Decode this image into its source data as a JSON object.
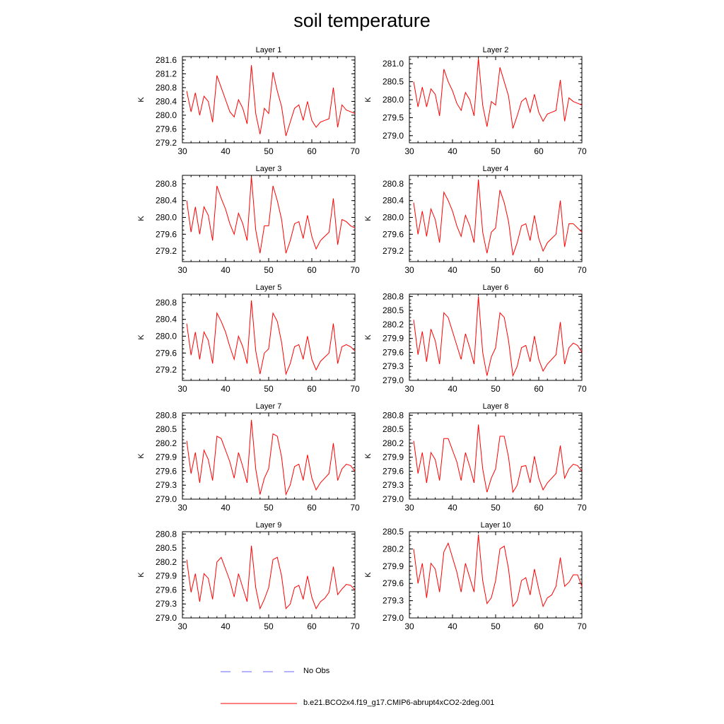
{
  "title": "soil temperature",
  "colors": {
    "model": "#ff0000",
    "obs": "#6666ff",
    "axis": "#000000"
  },
  "legend": {
    "obs_label": "No Obs",
    "model_label": "b.e21.BCO2x4.f19_g17.CMIP6-abrupt4xCO2-2deg.001"
  },
  "chart_data": [
    {
      "type": "line",
      "title": "Layer 1",
      "ylabel": "K",
      "xlim": [
        30,
        70
      ],
      "ylim": [
        279.2,
        281.7
      ],
      "yticks": [
        "279.2",
        "279.6",
        "280.0",
        "280.4",
        "280.8",
        "281.2",
        "281.6"
      ],
      "xticks": [
        "30",
        "40",
        "50",
        "60",
        "70"
      ],
      "series": [
        {
          "x": [
            31,
            32,
            33,
            34,
            35,
            36,
            37,
            38,
            39,
            40,
            41,
            42,
            43,
            44,
            45,
            46,
            47,
            48,
            49,
            50,
            51,
            52,
            53,
            54,
            55,
            56,
            57,
            58,
            59,
            60,
            61,
            62,
            63,
            64,
            65,
            66,
            67,
            68,
            69,
            70
          ],
          "values": [
            280.7,
            280.1,
            280.65,
            280.0,
            280.55,
            280.4,
            279.8,
            281.15,
            280.8,
            280.45,
            280.1,
            279.95,
            280.45,
            280.2,
            279.75,
            281.45,
            280.05,
            279.45,
            280.2,
            280.05,
            281.25,
            280.7,
            280.25,
            279.4,
            279.8,
            280.2,
            280.3,
            279.85,
            280.4,
            279.85,
            279.65,
            279.8,
            279.85,
            279.9,
            280.8,
            279.65,
            280.3,
            280.15,
            280.1,
            280.05
          ]
        }
      ]
    },
    {
      "type": "line",
      "title": "Layer 2",
      "ylabel": "K",
      "xlim": [
        30,
        70
      ],
      "ylim": [
        278.8,
        281.2
      ],
      "yticks": [
        "279.0",
        "279.5",
        "280.0",
        "280.5",
        "281.0"
      ],
      "xticks": [
        "30",
        "40",
        "50",
        "60",
        "70"
      ],
      "series": [
        {
          "x": [
            31,
            32,
            33,
            34,
            35,
            36,
            37,
            38,
            39,
            40,
            41,
            42,
            43,
            44,
            45,
            46,
            47,
            48,
            49,
            50,
            51,
            52,
            53,
            54,
            55,
            56,
            57,
            58,
            59,
            60,
            61,
            62,
            63,
            64,
            65,
            66,
            67,
            68,
            69,
            70
          ],
          "values": [
            280.5,
            279.8,
            280.35,
            279.8,
            280.3,
            280.15,
            279.55,
            280.85,
            280.5,
            280.25,
            279.9,
            279.7,
            280.2,
            280.0,
            279.55,
            281.15,
            279.85,
            279.25,
            279.95,
            279.85,
            280.9,
            280.5,
            280.1,
            279.2,
            279.55,
            279.95,
            280.05,
            279.65,
            280.15,
            279.65,
            279.4,
            279.6,
            279.65,
            279.7,
            280.55,
            279.4,
            280.05,
            279.95,
            279.9,
            279.85
          ]
        }
      ]
    },
    {
      "type": "line",
      "title": "Layer 3",
      "ylabel": "K",
      "xlim": [
        30,
        70
      ],
      "ylim": [
        278.95,
        281.0
      ],
      "yticks": [
        "279.2",
        "279.6",
        "280.0",
        "280.4",
        "280.8"
      ],
      "xticks": [
        "30",
        "40",
        "50",
        "60",
        "70"
      ],
      "series": [
        {
          "x": [
            31,
            32,
            33,
            34,
            35,
            36,
            37,
            38,
            39,
            40,
            41,
            42,
            43,
            44,
            45,
            46,
            47,
            48,
            49,
            50,
            51,
            52,
            53,
            54,
            55,
            56,
            57,
            58,
            59,
            60,
            61,
            62,
            63,
            64,
            65,
            66,
            67,
            68,
            69,
            70
          ],
          "values": [
            280.4,
            279.65,
            280.25,
            279.6,
            280.25,
            280.05,
            279.45,
            280.75,
            280.45,
            280.2,
            279.85,
            279.6,
            280.1,
            279.85,
            279.45,
            280.97,
            279.7,
            279.15,
            279.8,
            279.8,
            280.75,
            280.4,
            279.95,
            279.15,
            279.45,
            279.85,
            279.9,
            279.5,
            280.05,
            279.55,
            279.25,
            279.45,
            279.55,
            279.65,
            280.45,
            279.35,
            279.95,
            279.9,
            279.8,
            279.75
          ]
        }
      ]
    },
    {
      "type": "line",
      "title": "Layer 4",
      "ylabel": "K",
      "xlim": [
        30,
        70
      ],
      "ylim": [
        278.95,
        281.0
      ],
      "yticks": [
        "279.2",
        "279.6",
        "280.0",
        "280.4",
        "280.8"
      ],
      "xticks": [
        "30",
        "40",
        "50",
        "60",
        "70"
      ],
      "series": [
        {
          "x": [
            31,
            32,
            33,
            34,
            35,
            36,
            37,
            38,
            39,
            40,
            41,
            42,
            43,
            44,
            45,
            46,
            47,
            48,
            49,
            50,
            51,
            52,
            53,
            54,
            55,
            56,
            57,
            58,
            59,
            60,
            61,
            62,
            63,
            64,
            65,
            66,
            67,
            68,
            69,
            70
          ],
          "values": [
            280.35,
            279.6,
            280.15,
            279.55,
            280.2,
            279.95,
            279.4,
            280.6,
            280.4,
            280.15,
            279.8,
            279.55,
            280.05,
            279.8,
            279.4,
            280.9,
            279.65,
            279.15,
            279.65,
            279.75,
            280.65,
            280.35,
            279.9,
            279.1,
            279.4,
            279.8,
            279.85,
            279.45,
            280.05,
            279.5,
            279.2,
            279.4,
            279.5,
            279.6,
            280.4,
            279.3,
            279.85,
            279.85,
            279.75,
            279.65
          ]
        }
      ]
    },
    {
      "type": "line",
      "title": "Layer 5",
      "ylabel": "K",
      "xlim": [
        30,
        70
      ],
      "ylim": [
        278.95,
        281.0
      ],
      "yticks": [
        "279.2",
        "279.6",
        "280.0",
        "280.4",
        "280.8"
      ],
      "xticks": [
        "30",
        "40",
        "50",
        "60",
        "70"
      ],
      "series": [
        {
          "x": [
            31,
            32,
            33,
            34,
            35,
            36,
            37,
            38,
            39,
            40,
            41,
            42,
            43,
            44,
            45,
            46,
            47,
            48,
            49,
            50,
            51,
            52,
            53,
            54,
            55,
            56,
            57,
            58,
            59,
            60,
            61,
            62,
            63,
            64,
            65,
            66,
            67,
            68,
            69,
            70
          ],
          "values": [
            280.3,
            279.55,
            280.1,
            279.45,
            280.1,
            279.9,
            279.35,
            280.55,
            280.35,
            280.1,
            279.75,
            279.45,
            280.0,
            279.75,
            279.35,
            280.85,
            279.65,
            279.1,
            279.6,
            279.7,
            280.55,
            280.35,
            279.85,
            279.1,
            279.35,
            279.75,
            279.8,
            279.45,
            280.0,
            279.45,
            279.2,
            279.4,
            279.5,
            279.6,
            280.3,
            279.35,
            279.75,
            279.8,
            279.75,
            279.65
          ]
        }
      ]
    },
    {
      "type": "line",
      "title": "Layer 6",
      "ylabel": "K",
      "xlim": [
        30,
        70
      ],
      "ylim": [
        279.0,
        280.85
      ],
      "yticks": [
        "279.0",
        "279.3",
        "279.6",
        "279.9",
        "280.2",
        "280.5",
        "280.8"
      ],
      "xticks": [
        "30",
        "40",
        "50",
        "60",
        "70"
      ],
      "series": [
        {
          "x": [
            31,
            32,
            33,
            34,
            35,
            36,
            37,
            38,
            39,
            40,
            41,
            42,
            43,
            44,
            45,
            46,
            47,
            48,
            49,
            50,
            51,
            52,
            53,
            54,
            55,
            56,
            57,
            58,
            59,
            60,
            61,
            62,
            63,
            64,
            65,
            66,
            67,
            68,
            69,
            70
          ],
          "values": [
            280.3,
            279.55,
            280.05,
            279.4,
            280.1,
            279.85,
            279.35,
            280.45,
            280.35,
            280.05,
            279.75,
            279.45,
            280.0,
            279.7,
            279.35,
            280.8,
            279.6,
            279.1,
            279.5,
            279.7,
            280.45,
            280.35,
            279.85,
            279.1,
            279.3,
            279.7,
            279.75,
            279.4,
            279.95,
            279.45,
            279.2,
            279.35,
            279.45,
            279.55,
            280.25,
            279.35,
            279.7,
            279.8,
            279.75,
            279.6
          ]
        }
      ]
    },
    {
      "type": "line",
      "title": "Layer 7",
      "ylabel": "K",
      "xlim": [
        30,
        70
      ],
      "ylim": [
        279.0,
        280.85
      ],
      "yticks": [
        "279.0",
        "279.3",
        "279.6",
        "279.9",
        "280.2",
        "280.5",
        "280.8"
      ],
      "xticks": [
        "30",
        "40",
        "50",
        "60",
        "70"
      ],
      "series": [
        {
          "x": [
            31,
            32,
            33,
            34,
            35,
            36,
            37,
            38,
            39,
            40,
            41,
            42,
            43,
            44,
            45,
            46,
            47,
            48,
            49,
            50,
            51,
            52,
            53,
            54,
            55,
            56,
            57,
            58,
            59,
            60,
            61,
            62,
            63,
            64,
            65,
            66,
            67,
            68,
            69,
            70
          ],
          "values": [
            280.25,
            279.55,
            280.0,
            279.35,
            280.05,
            279.85,
            279.4,
            280.35,
            280.3,
            280.05,
            279.8,
            279.45,
            280.0,
            279.7,
            279.35,
            280.7,
            279.65,
            279.1,
            279.45,
            279.65,
            280.4,
            280.35,
            279.9,
            279.1,
            279.3,
            279.7,
            279.75,
            279.4,
            279.95,
            279.45,
            279.2,
            279.35,
            279.45,
            279.55,
            280.2,
            279.4,
            279.65,
            279.75,
            279.72,
            279.6
          ]
        }
      ]
    },
    {
      "type": "line",
      "title": "Layer 8",
      "ylabel": "K",
      "xlim": [
        30,
        70
      ],
      "ylim": [
        279.0,
        280.85
      ],
      "yticks": [
        "279.0",
        "279.3",
        "279.6",
        "279.9",
        "280.2",
        "280.5",
        "280.8"
      ],
      "xticks": [
        "30",
        "40",
        "50",
        "60",
        "70"
      ],
      "series": [
        {
          "x": [
            31,
            32,
            33,
            34,
            35,
            36,
            37,
            38,
            39,
            40,
            41,
            42,
            43,
            44,
            45,
            46,
            47,
            48,
            49,
            50,
            51,
            52,
            53,
            54,
            55,
            56,
            57,
            58,
            59,
            60,
            61,
            62,
            63,
            64,
            65,
            66,
            67,
            68,
            69,
            70
          ],
          "values": [
            280.25,
            279.55,
            280.0,
            279.35,
            280.0,
            279.85,
            279.4,
            280.3,
            280.3,
            280.05,
            279.8,
            279.4,
            280.0,
            279.7,
            279.35,
            280.6,
            279.65,
            279.15,
            279.45,
            279.65,
            280.35,
            280.35,
            279.9,
            279.15,
            279.3,
            279.7,
            279.72,
            279.35,
            279.92,
            279.45,
            279.2,
            279.35,
            279.45,
            279.55,
            280.15,
            279.45,
            279.65,
            279.75,
            279.72,
            279.6
          ]
        }
      ]
    },
    {
      "type": "line",
      "title": "Layer 9",
      "ylabel": "K",
      "xlim": [
        30,
        70
      ],
      "ylim": [
        279.0,
        280.85
      ],
      "yticks": [
        "279.0",
        "279.3",
        "279.6",
        "279.9",
        "280.2",
        "280.5",
        "280.8"
      ],
      "xticks": [
        "30",
        "40",
        "50",
        "60",
        "70"
      ],
      "series": [
        {
          "x": [
            31,
            32,
            33,
            34,
            35,
            36,
            37,
            38,
            39,
            40,
            41,
            42,
            43,
            44,
            45,
            46,
            47,
            48,
            49,
            50,
            51,
            52,
            53,
            54,
            55,
            56,
            57,
            58,
            59,
            60,
            61,
            62,
            63,
            64,
            65,
            66,
            67,
            68,
            69,
            70
          ],
          "values": [
            280.25,
            279.55,
            279.95,
            279.35,
            279.95,
            279.85,
            279.4,
            280.2,
            280.3,
            280.05,
            279.8,
            279.45,
            279.95,
            279.65,
            279.35,
            280.55,
            279.65,
            279.2,
            279.4,
            279.65,
            280.25,
            280.3,
            279.9,
            279.2,
            279.3,
            279.65,
            279.7,
            279.4,
            279.9,
            279.45,
            279.2,
            279.35,
            279.42,
            279.55,
            280.1,
            279.5,
            279.62,
            279.72,
            279.7,
            279.6
          ]
        }
      ]
    },
    {
      "type": "line",
      "title": "Layer 10",
      "ylabel": "K",
      "xlim": [
        30,
        70
      ],
      "ylim": [
        279.0,
        280.5
      ],
      "yticks": [
        "279.0",
        "279.3",
        "279.6",
        "279.9",
        "280.2",
        "280.5"
      ],
      "xticks": [
        "30",
        "40",
        "50",
        "60",
        "70"
      ],
      "series": [
        {
          "x": [
            31,
            32,
            33,
            34,
            35,
            36,
            37,
            38,
            39,
            40,
            41,
            42,
            43,
            44,
            45,
            46,
            47,
            48,
            49,
            50,
            51,
            52,
            53,
            54,
            55,
            56,
            57,
            58,
            59,
            60,
            61,
            62,
            63,
            64,
            65,
            66,
            67,
            68,
            69,
            70
          ],
          "values": [
            280.2,
            279.6,
            279.95,
            279.35,
            279.95,
            279.85,
            279.45,
            280.15,
            280.3,
            280.05,
            279.8,
            279.45,
            279.95,
            279.7,
            279.45,
            280.45,
            279.65,
            279.25,
            279.35,
            279.65,
            280.2,
            280.25,
            279.85,
            279.2,
            279.3,
            279.65,
            279.7,
            279.4,
            279.85,
            279.5,
            279.2,
            279.35,
            279.4,
            279.55,
            280.05,
            279.55,
            279.62,
            279.75,
            279.75,
            279.55
          ]
        }
      ]
    }
  ]
}
